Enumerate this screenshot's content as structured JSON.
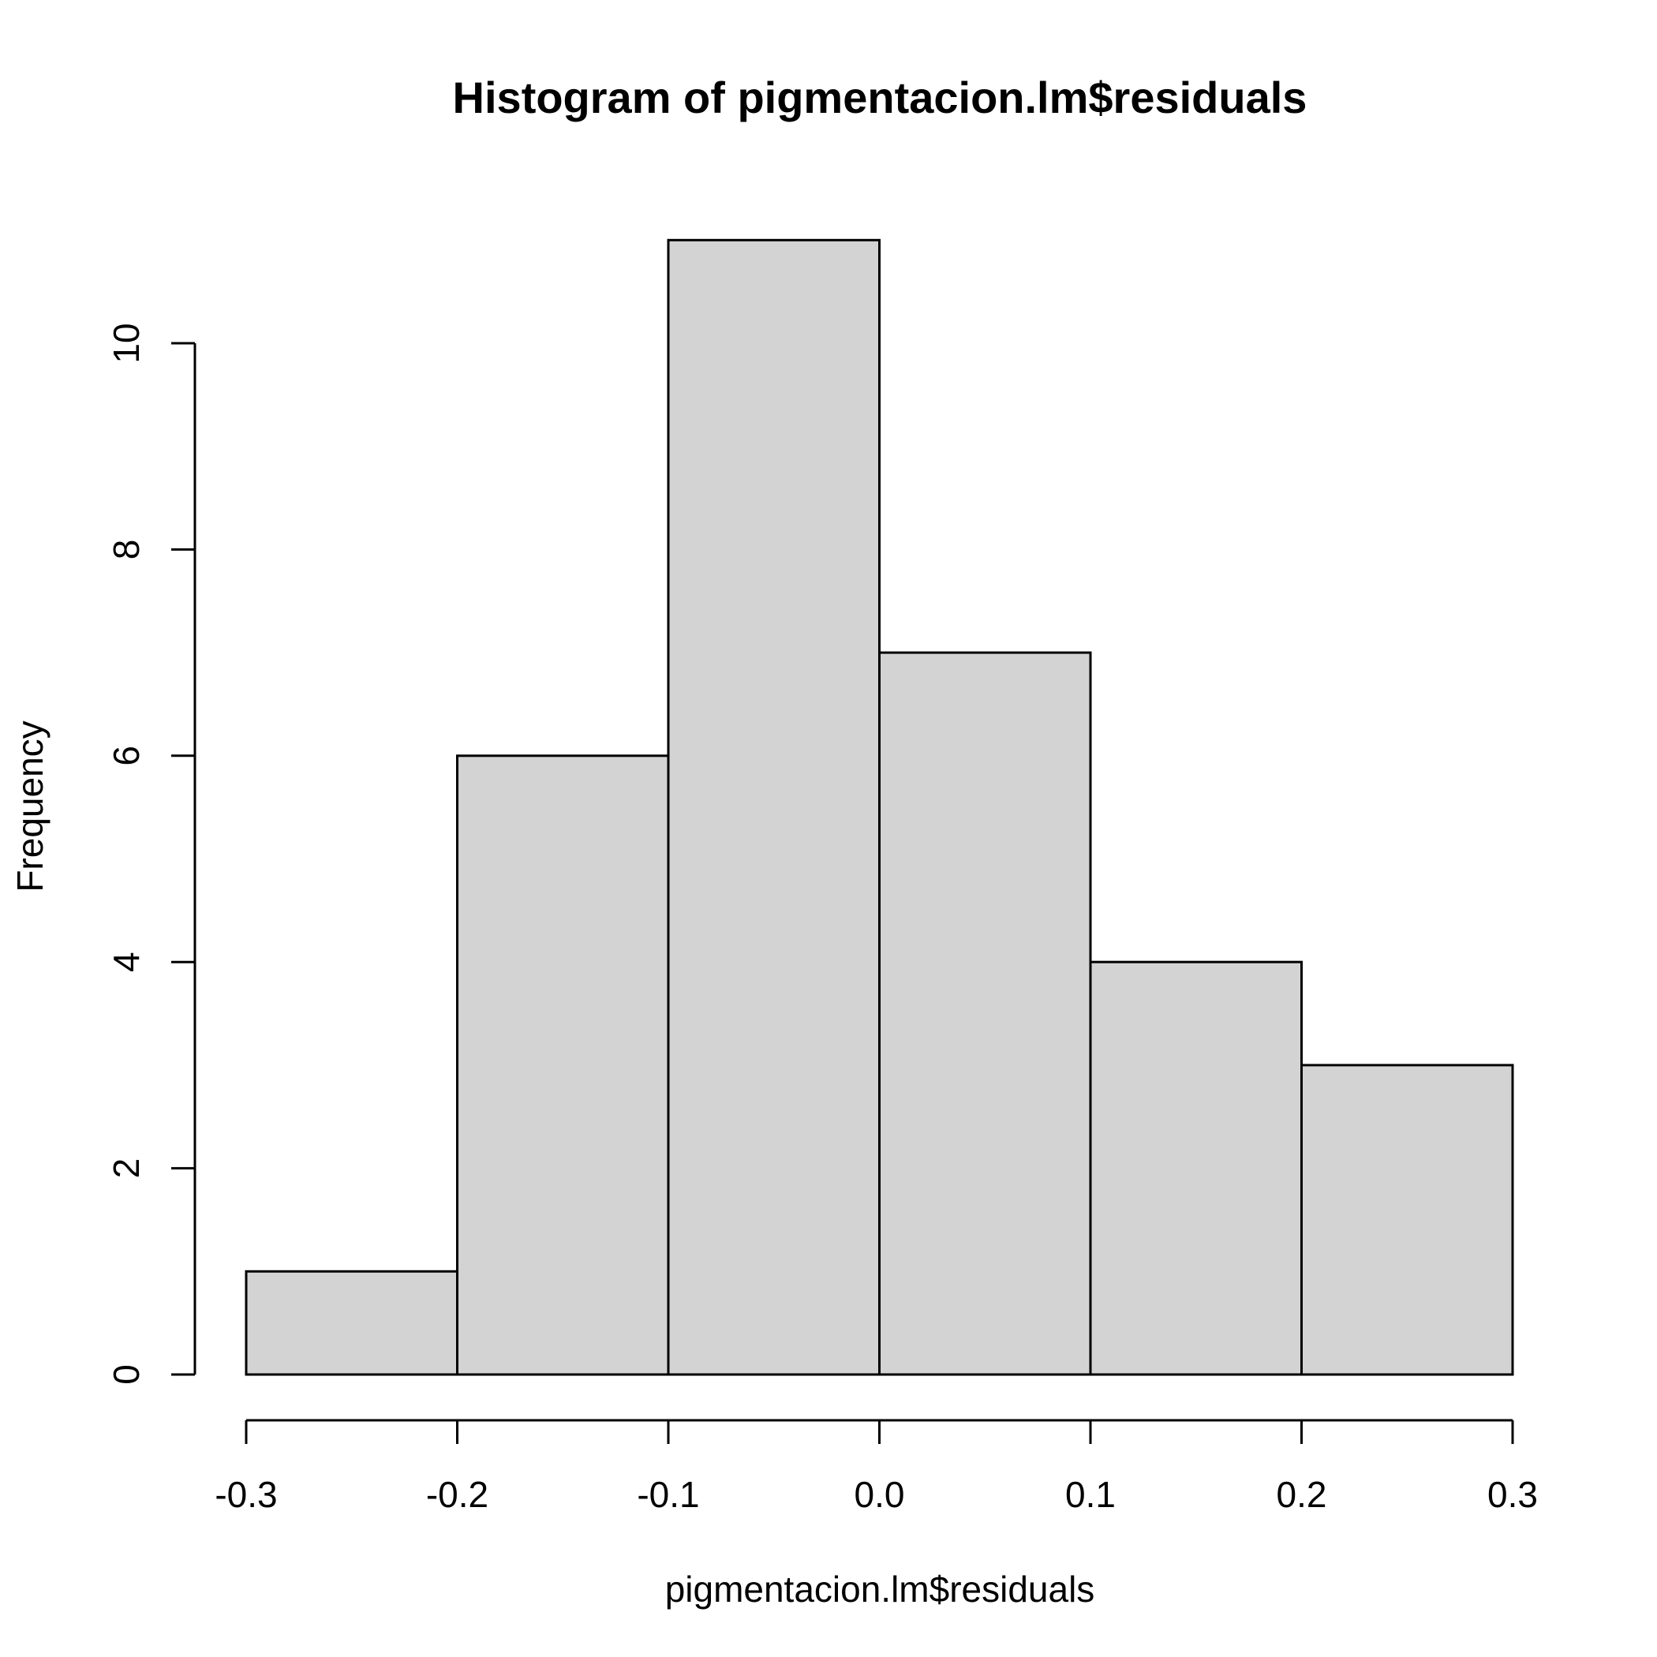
{
  "chart_data": {
    "type": "bar",
    "title": "Histogram of pigmentacion.lm$residuals",
    "xlabel": "pigmentacion.lm$residuals",
    "ylabel": "Frequency",
    "bins": [
      {
        "from": -0.3,
        "to": -0.2,
        "count": 1
      },
      {
        "from": -0.2,
        "to": -0.1,
        "count": 6
      },
      {
        "from": -0.1,
        "to": 0.0,
        "count": 11
      },
      {
        "from": 0.0,
        "to": 0.1,
        "count": 7
      },
      {
        "from": 0.1,
        "to": 0.2,
        "count": 4
      },
      {
        "from": 0.2,
        "to": 0.3,
        "count": 3
      }
    ],
    "xlim": [
      -0.3,
      0.3
    ],
    "ylim": [
      0,
      11
    ],
    "x_ticks": [
      {
        "value": -0.3,
        "label": "-0.3"
      },
      {
        "value": -0.2,
        "label": "-0.2"
      },
      {
        "value": -0.1,
        "label": "-0.1"
      },
      {
        "value": 0.0,
        "label": "0.0"
      },
      {
        "value": 0.1,
        "label": "0.1"
      },
      {
        "value": 0.2,
        "label": "0.2"
      },
      {
        "value": 0.3,
        "label": "0.3"
      }
    ],
    "y_ticks": [
      {
        "value": 0,
        "label": "0"
      },
      {
        "value": 2,
        "label": "2"
      },
      {
        "value": 4,
        "label": "4"
      },
      {
        "value": 6,
        "label": "6"
      },
      {
        "value": 8,
        "label": "8"
      },
      {
        "value": 10,
        "label": "10"
      }
    ],
    "grid": false,
    "legend": "none",
    "bar_color": "#d3d3d3",
    "edge_color": "#000000"
  }
}
